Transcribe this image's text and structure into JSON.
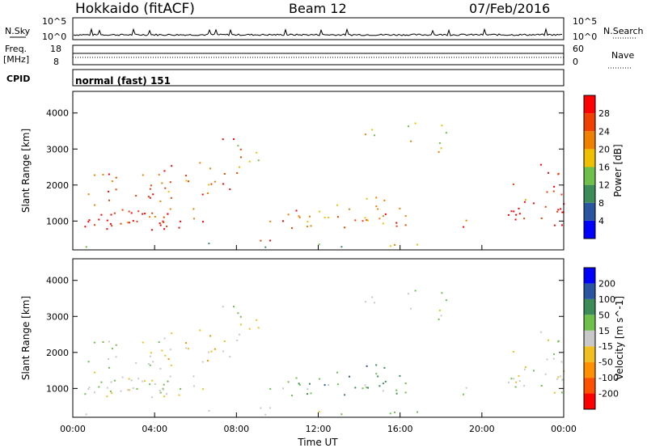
{
  "header": {
    "site": "Hokkaido (fitACF)",
    "beam": "Beam 12",
    "date": "07/Feb/2016"
  },
  "strips": {
    "nsky": {
      "label": "N.Sky",
      "top_tick": "10^5",
      "bottom_tick": "10^0",
      "right_label": "N.Search"
    },
    "freq": {
      "label_line1": "Freq.",
      "label_line2": "[MHz]",
      "top_tick": "18",
      "bottom_tick": "8",
      "right_top_tick": "60",
      "right_bottom_tick": "0",
      "right_label": "Nave"
    },
    "cpid": {
      "label": "CPID",
      "value": "normal (fast) 151"
    }
  },
  "colors": {
    "power": [
      "#0000ff",
      "#2a55a0",
      "#3c8c5a",
      "#6ec04a",
      "#f0c000",
      "#f08000",
      "#f04000",
      "#ff0000"
    ],
    "velocity": [
      "#ff0000",
      "#ff5000",
      "#ff9000",
      "#f0c020",
      "#c8c8c8",
      "#6ec04a",
      "#3c8c5a",
      "#2a55a0",
      "#0000ff"
    ]
  },
  "chart_data": [
    {
      "type": "heatmap",
      "name": "power",
      "ylabel": "Slant Range [km]",
      "yticks": [
        "1000",
        "2000",
        "3000",
        "4000"
      ],
      "ylim": [
        200,
        4600
      ],
      "colorbar_label": "Power [dB]",
      "colorbar_ticks": [
        "4",
        "8",
        "12",
        "16",
        "20",
        "24",
        "28"
      ],
      "clim": [
        0,
        32
      ]
    },
    {
      "type": "heatmap",
      "name": "velocity",
      "ylabel": "Slant Range [km]",
      "yticks": [
        "1000",
        "2000",
        "3000",
        "4000"
      ],
      "ylim": [
        200,
        4600
      ],
      "colorbar_label": "Velocity [m s^-1]",
      "colorbar_ticks": [
        "-200",
        "-100",
        "-50",
        "-15",
        "15",
        "50",
        "100",
        "200"
      ]
    }
  ],
  "xaxis": {
    "label": "Time UT",
    "ticks": [
      "00:00",
      "04:00",
      "08:00",
      "12:00",
      "16:00",
      "20:00",
      "00:00"
    ]
  }
}
